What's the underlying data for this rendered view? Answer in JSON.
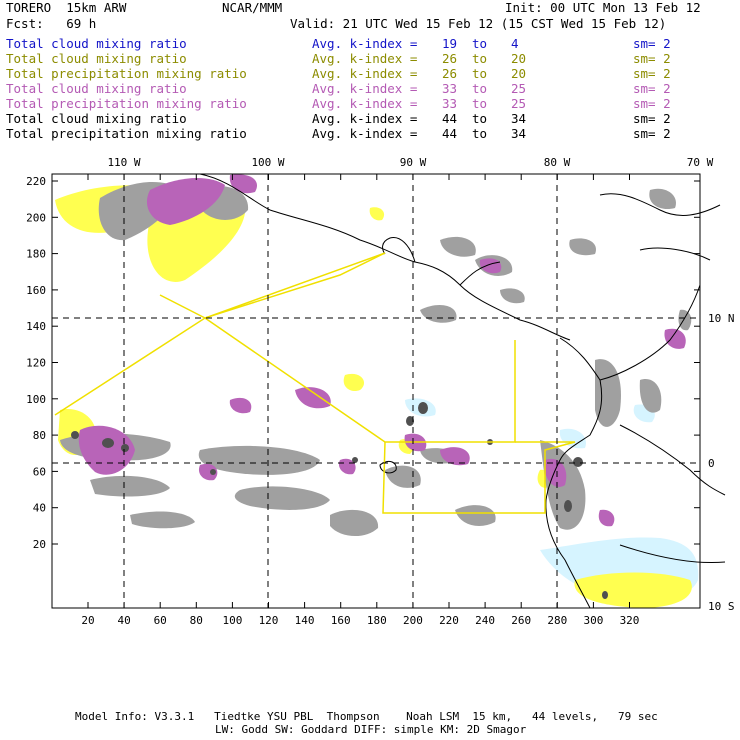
{
  "header": {
    "model": "TORERO  15km ARW",
    "org": "NCAR/MMM",
    "init": "Init: 00 UTC Mon 13 Feb 12",
    "fcst": "Fcst:   69 h",
    "valid": "Valid: 21 UTC Wed 15 Feb 12 (15 CST Wed 15 Feb 12)"
  },
  "legend": [
    {
      "field": "Total cloud mixing ratio",
      "k_label": "Avg. k-index =",
      "k_from": "19",
      "to": "to",
      "k_to": "4",
      "sm": "sm= 2",
      "color": "#1414c8"
    },
    {
      "field": "Total cloud mixing ratio",
      "k_label": "Avg. k-index =",
      "k_from": "26",
      "to": "to",
      "k_to": "20",
      "sm": "sm= 2",
      "color": "#8c8c00"
    },
    {
      "field": "Total precipitation mixing ratio",
      "k_label": "Avg. k-index =",
      "k_from": "26",
      "to": "to",
      "k_to": "20",
      "sm": "sm= 2",
      "color": "#8c8c00"
    },
    {
      "field": "Total cloud mixing ratio",
      "k_label": "Avg. k-index =",
      "k_from": "33",
      "to": "to",
      "k_to": "25",
      "sm": "sm= 2",
      "color": "#b45ab4"
    },
    {
      "field": "Total precipitation mixing ratio",
      "k_label": "Avg. k-index =",
      "k_from": "33",
      "to": "to",
      "k_to": "25",
      "sm": "sm= 2",
      "color": "#b45ab4"
    },
    {
      "field": "Total cloud mixing ratio",
      "k_label": "Avg. k-index =",
      "k_from": "44",
      "to": "to",
      "k_to": "34",
      "sm": "sm= 2",
      "color": "#000000"
    },
    {
      "field": "Total precipitation mixing ratio",
      "k_label": "Avg. k-index =",
      "k_from": "44",
      "to": "to",
      "k_to": "34",
      "sm": "sm= 2",
      "color": "#000000"
    }
  ],
  "axes": {
    "top": [
      "110 W",
      "100 W",
      "90 W",
      "80 W",
      "70 W"
    ],
    "right": [
      "10 N",
      "0",
      "10 S"
    ],
    "left": [
      "220",
      "200",
      "180",
      "160",
      "140",
      "120",
      "100",
      "80",
      "60",
      "40",
      "20"
    ],
    "bottom": [
      "20",
      "40",
      "60",
      "80",
      "100",
      "120",
      "140",
      "160",
      "180",
      "200",
      "220",
      "240",
      "260",
      "280",
      "300",
      "320"
    ]
  },
  "footer": {
    "line1": "Model Info: V3.3.1   Tiedtke YSU PBL  Thompson    Noah LSM  15 km,   44 levels,   79 sec",
    "line2": "LW: Godd SW: Goddard DIFF: simple KM: 2D Smagor"
  },
  "colors": {
    "cloud_low": "#d6f4ff",
    "cloud_mid": "#ffff50",
    "cloud_high": "#b864b8",
    "cloud_deep": "#a0a0a0",
    "cloud_core": "#505050",
    "flight_track": "#f0e000",
    "coastline": "#000000"
  }
}
